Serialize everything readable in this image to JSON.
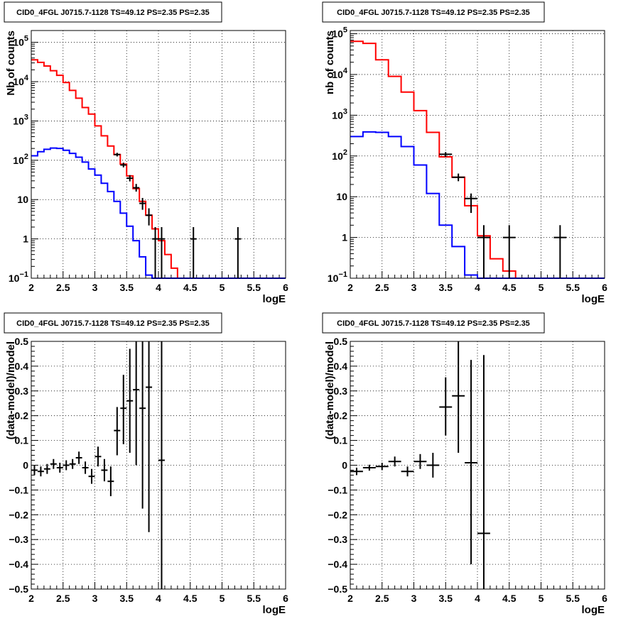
{
  "chart_data": [
    {
      "type": "histogram",
      "title": "CID0_4FGL J0715.7-1128 TS=49.12 PS=2.35 PS=2.35",
      "xlabel": "logE",
      "ylabel": "Nb of counts",
      "xlim": [
        2,
        6
      ],
      "ylim": [
        0.1,
        200000
      ],
      "yscale": "log",
      "grid": true,
      "x_ticks": [
        "2",
        "2.5",
        "3",
        "3.5",
        "4",
        "4.5",
        "5",
        "5.5",
        "6"
      ],
      "y_ticks": [
        {
          "value": 0.1,
          "base": "10",
          "exp": "−1"
        },
        {
          "value": 1,
          "text": "1"
        },
        {
          "value": 10,
          "text": "10"
        },
        {
          "value": 100,
          "base": "10",
          "exp": "2"
        },
        {
          "value": 1000,
          "base": "10",
          "exp": "3"
        },
        {
          "value": 10000,
          "base": "10",
          "exp": "4"
        },
        {
          "value": 100000,
          "base": "10",
          "exp": "5"
        }
      ],
      "bin_edges": [
        2.0,
        2.1,
        2.2,
        2.3,
        2.4,
        2.5,
        2.6,
        2.7,
        2.8,
        2.9,
        3.0,
        3.1,
        3.2,
        3.3,
        3.4,
        3.5,
        3.6,
        3.7,
        3.8,
        3.9,
        4.0,
        4.1,
        4.2,
        4.3,
        4.4,
        4.5,
        4.6,
        4.7,
        4.8,
        4.9,
        5.0,
        5.1,
        5.2,
        5.3,
        5.4,
        5.5,
        5.6,
        5.7,
        5.8,
        5.9,
        6.0
      ],
      "series": [
        {
          "color": "#ff0000",
          "values": [
            36000,
            31000,
            25000,
            19000,
            14500,
            9500,
            6000,
            3800,
            2200,
            1500,
            750,
            420,
            230,
            140,
            80,
            40,
            19,
            9,
            4,
            1.8,
            0.9,
            0.4,
            0.18,
            0.1,
            0.1,
            0.1,
            0.1,
            0.1,
            0.1,
            0.1,
            0.1,
            0.1,
            0.1,
            0.1,
            0.1,
            0.1,
            0.1,
            0.1,
            0.1,
            0.1
          ]
        },
        {
          "color": "#0000ff",
          "values": [
            130,
            165,
            190,
            205,
            200,
            180,
            150,
            120,
            90,
            60,
            42,
            26,
            16,
            9,
            4.5,
            2.1,
            0.9,
            0.35,
            0.12,
            0.05,
            0.05,
            0.05,
            0.05,
            0.1,
            0.1,
            0.1,
            0.1,
            0.1,
            0.1,
            0.1,
            0.1,
            0.1,
            0.1,
            0.1,
            0.1,
            0.1,
            0.1,
            0.1,
            0.1,
            0.1
          ]
        }
      ],
      "points": [
        {
          "x": 3.35,
          "y": 140,
          "xerr": 0.05,
          "ylo": 125,
          "yhi": 155
        },
        {
          "x": 3.45,
          "y": 76,
          "xerr": 0.05,
          "ylo": 66,
          "yhi": 87
        },
        {
          "x": 3.55,
          "y": 35,
          "xerr": 0.05,
          "ylo": 29,
          "yhi": 42
        },
        {
          "x": 3.65,
          "y": 20,
          "xerr": 0.05,
          "ylo": 16,
          "yhi": 25
        },
        {
          "x": 3.75,
          "y": 8,
          "xerr": 0.05,
          "ylo": 5.5,
          "yhi": 11
        },
        {
          "x": 3.85,
          "y": 4,
          "xerr": 0.05,
          "ylo": 2.2,
          "yhi": 6
        },
        {
          "x": 3.95,
          "y": 1,
          "xerr": 0.05,
          "ylo": 0.1,
          "yhi": 2
        },
        {
          "x": 4.05,
          "y": 1,
          "xerr": 0.05,
          "ylo": 0.1,
          "yhi": 2
        },
        {
          "x": 4.55,
          "y": 1,
          "xerr": 0.05,
          "ylo": 0.1,
          "yhi": 2
        },
        {
          "x": 5.25,
          "y": 1,
          "xerr": 0.05,
          "ylo": 0.1,
          "yhi": 2
        }
      ]
    },
    {
      "type": "histogram",
      "title": "CID0_4FGL J0715.7-1128 TS=49.12 PS=2.35 PS=2.35",
      "xlabel": "logE",
      "ylabel": "nb of counts",
      "xlim": [
        2,
        6
      ],
      "ylim": [
        0.1,
        120000
      ],
      "yscale": "log",
      "grid": true,
      "x_ticks": [
        "2",
        "2.5",
        "3",
        "3.5",
        "4",
        "4.5",
        "5",
        "5.5",
        "6"
      ],
      "y_ticks": [
        {
          "value": 0.1,
          "base": "10",
          "exp": "−1"
        },
        {
          "value": 1,
          "text": "1"
        },
        {
          "value": 10,
          "text": "10"
        },
        {
          "value": 100,
          "base": "10",
          "exp": "2"
        },
        {
          "value": 1000,
          "base": "10",
          "exp": "3"
        },
        {
          "value": 10000,
          "base": "10",
          "exp": "4"
        },
        {
          "value": 100000,
          "base": "10",
          "exp": "5"
        }
      ],
      "bin_edges": [
        2.0,
        2.2,
        2.4,
        2.6,
        2.8,
        3.0,
        3.2,
        3.4,
        3.6,
        3.8,
        4.0,
        4.2,
        4.4,
        4.6,
        4.8,
        5.0,
        5.2,
        5.4,
        5.6,
        5.8,
        6.0
      ],
      "series": [
        {
          "color": "#ff0000",
          "values": [
            65000,
            58000,
            23000,
            9000,
            3700,
            1300,
            380,
            95,
            30,
            6,
            1.1,
            0.3,
            0.15,
            0.1,
            0.1,
            0.1,
            0.1,
            0.1,
            0.1,
            0.1
          ]
        },
        {
          "color": "#0000ff",
          "values": [
            300,
            390,
            380,
            300,
            170,
            60,
            12,
            2,
            0.6,
            0.12,
            0.05,
            0.1,
            0.1,
            0.1,
            0.1,
            0.1,
            0.1,
            0.1,
            0.1,
            0.1
          ]
        }
      ],
      "points": [
        {
          "x": 3.5,
          "y": 110,
          "xerr": 0.1,
          "ylo": 95,
          "yhi": 125
        },
        {
          "x": 3.7,
          "y": 30,
          "xerr": 0.1,
          "ylo": 24,
          "yhi": 37
        },
        {
          "x": 3.9,
          "y": 9,
          "xerr": 0.1,
          "ylo": 4,
          "yhi": 12
        },
        {
          "x": 4.1,
          "y": 1,
          "xerr": 0.1,
          "ylo": 0.1,
          "yhi": 2
        },
        {
          "x": 4.5,
          "y": 1,
          "xerr": 0.1,
          "ylo": 0.1,
          "yhi": 2
        },
        {
          "x": 5.3,
          "y": 1,
          "xerr": 0.1,
          "ylo": 0.1,
          "yhi": 2
        }
      ]
    },
    {
      "type": "scatter",
      "title": "CID0_4FGL J0715.7-1128 TS=49.12 PS=2.35 PS=2.35",
      "xlabel": "logE",
      "ylabel": "(data-model)/model",
      "xlim": [
        2,
        6
      ],
      "ylim": [
        -0.5,
        0.5
      ],
      "grid": true,
      "x_ticks": [
        "2",
        "2.5",
        "3",
        "3.5",
        "4",
        "4.5",
        "5",
        "5.5",
        "6"
      ],
      "y_ticks": [
        "−0.5",
        "−0.4",
        "−0.3",
        "−0.2",
        "−0.1",
        "0",
        "0.1",
        "0.2",
        "0.3",
        "0.4",
        "0.5"
      ],
      "y_tick_values": [
        -0.5,
        -0.4,
        -0.3,
        -0.2,
        -0.1,
        0,
        0.1,
        0.2,
        0.3,
        0.4,
        0.5
      ],
      "points": [
        {
          "x": 2.05,
          "y": -0.02,
          "xerr": 0.05,
          "ylo": -0.04,
          "yhi": 0.0
        },
        {
          "x": 2.15,
          "y": -0.025,
          "xerr": 0.05,
          "ylo": -0.045,
          "yhi": -0.005
        },
        {
          "x": 2.25,
          "y": -0.015,
          "xerr": 0.05,
          "ylo": -0.035,
          "yhi": 0.005
        },
        {
          "x": 2.35,
          "y": 0.005,
          "xerr": 0.05,
          "ylo": -0.015,
          "yhi": 0.025
        },
        {
          "x": 2.45,
          "y": -0.01,
          "xerr": 0.05,
          "ylo": -0.03,
          "yhi": 0.01
        },
        {
          "x": 2.55,
          "y": 0.0,
          "xerr": 0.05,
          "ylo": -0.02,
          "yhi": 0.02
        },
        {
          "x": 2.65,
          "y": 0.005,
          "xerr": 0.05,
          "ylo": -0.015,
          "yhi": 0.025
        },
        {
          "x": 2.75,
          "y": 0.03,
          "xerr": 0.05,
          "ylo": 0.005,
          "yhi": 0.055
        },
        {
          "x": 2.85,
          "y": -0.01,
          "xerr": 0.05,
          "ylo": -0.035,
          "yhi": 0.015
        },
        {
          "x": 2.95,
          "y": -0.045,
          "xerr": 0.05,
          "ylo": -0.075,
          "yhi": -0.015
        },
        {
          "x": 3.05,
          "y": 0.035,
          "xerr": 0.05,
          "ylo": -0.005,
          "yhi": 0.075
        },
        {
          "x": 3.15,
          "y": -0.02,
          "xerr": 0.05,
          "ylo": -0.065,
          "yhi": 0.025
        },
        {
          "x": 3.25,
          "y": -0.065,
          "xerr": 0.05,
          "ylo": -0.125,
          "yhi": -0.005
        },
        {
          "x": 3.35,
          "y": 0.14,
          "xerr": 0.05,
          "ylo": 0.04,
          "yhi": 0.235
        },
        {
          "x": 3.45,
          "y": 0.23,
          "xerr": 0.05,
          "ylo": 0.085,
          "yhi": 0.365
        },
        {
          "x": 3.55,
          "y": 0.26,
          "xerr": 0.05,
          "ylo": 0.05,
          "yhi": 0.47
        },
        {
          "x": 3.65,
          "y": 0.305,
          "xerr": 0.05,
          "ylo": 0.0,
          "yhi": 0.5
        },
        {
          "x": 3.75,
          "y": 0.23,
          "xerr": 0.05,
          "ylo": -0.175,
          "yhi": 0.5
        },
        {
          "x": 3.85,
          "y": 0.315,
          "xerr": 0.05,
          "ylo": -0.27,
          "yhi": 0.5
        },
        {
          "x": 4.05,
          "y": 0.02,
          "xerr": 0.05,
          "ylo": -0.5,
          "yhi": 0.5
        }
      ]
    },
    {
      "type": "scatter",
      "title": "CID0_4FGL J0715.7-1128 TS=49.12 PS=2.35 PS=2.35",
      "xlabel": "logE",
      "ylabel": "(data-model)/model",
      "xlim": [
        2,
        6
      ],
      "ylim": [
        -0.5,
        0.5
      ],
      "grid": true,
      "x_ticks": [
        "2",
        "2.5",
        "3",
        "3.5",
        "4",
        "4.5",
        "5",
        "5.5",
        "6"
      ],
      "y_ticks": [
        "−0.5",
        "−0.4",
        "−0.3",
        "−0.2",
        "−0.1",
        "0",
        "0.1",
        "0.2",
        "0.3",
        "0.4",
        "0.5"
      ],
      "y_tick_values": [
        -0.5,
        -0.4,
        -0.3,
        -0.2,
        -0.1,
        0,
        0.1,
        0.2,
        0.3,
        0.4,
        0.5
      ],
      "points": [
        {
          "x": 2.1,
          "y": -0.025,
          "xerr": 0.1,
          "ylo": -0.04,
          "yhi": -0.01
        },
        {
          "x": 2.3,
          "y": -0.01,
          "xerr": 0.1,
          "ylo": -0.022,
          "yhi": 0.002
        },
        {
          "x": 2.5,
          "y": -0.005,
          "xerr": 0.1,
          "ylo": -0.02,
          "yhi": 0.01
        },
        {
          "x": 2.7,
          "y": 0.015,
          "xerr": 0.1,
          "ylo": -0.005,
          "yhi": 0.035
        },
        {
          "x": 2.9,
          "y": -0.025,
          "xerr": 0.1,
          "ylo": -0.045,
          "yhi": -0.005
        },
        {
          "x": 3.1,
          "y": 0.015,
          "xerr": 0.1,
          "ylo": -0.015,
          "yhi": 0.045
        },
        {
          "x": 3.3,
          "y": 0.0,
          "xerr": 0.1,
          "ylo": -0.05,
          "yhi": 0.05
        },
        {
          "x": 3.5,
          "y": 0.235,
          "xerr": 0.1,
          "ylo": 0.12,
          "yhi": 0.355
        },
        {
          "x": 3.7,
          "y": 0.28,
          "xerr": 0.1,
          "ylo": 0.05,
          "yhi": 0.5
        },
        {
          "x": 3.9,
          "y": 0.01,
          "xerr": 0.1,
          "ylo": -0.4,
          "yhi": 0.425
        },
        {
          "x": 4.1,
          "y": -0.275,
          "xerr": 0.1,
          "ylo": -0.5,
          "yhi": 0.445
        }
      ]
    }
  ]
}
